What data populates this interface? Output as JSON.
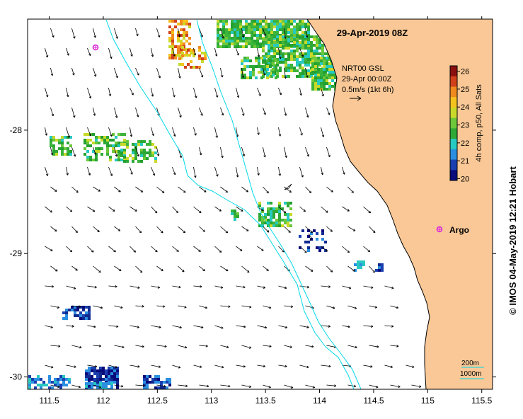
{
  "title": "29-Apr-2019 08Z",
  "info": {
    "line1": "NRT00 GSL",
    "line2": "29-Apr 00:00Z",
    "line3": "0.5m/s (1kt 6h)"
  },
  "colorbar": {
    "label": "4h comp, p50, All Sats",
    "ticks": [
      "26",
      "25",
      "24",
      "23",
      "22",
      "21",
      "20"
    ],
    "min": 19.9,
    "max": 26.3,
    "colors": [
      "#0a0a7a",
      "#1a3fb0",
      "#2a8fe0",
      "#27c9c0",
      "#2ea836",
      "#6cc83a",
      "#c9d92a",
      "#f4c31e",
      "#f08a1e",
      "#d0401a",
      "#8a1010"
    ]
  },
  "argo": {
    "label": "Argo",
    "color": "#e020e0"
  },
  "isobaths": {
    "label_200": "200m",
    "label_1000": "1000m",
    "color": "#00d8e8"
  },
  "land_color": "#f9c896",
  "axes": {
    "x_ticks": [
      "111.5",
      "112",
      "112.5",
      "113",
      "113.5",
      "114",
      "114.5",
      "115",
      "115.5"
    ],
    "y_ticks": [
      "-28",
      "-29",
      "-30"
    ],
    "lon_range": [
      111.3,
      115.6
    ],
    "lat_range": [
      -30.1,
      -27.1
    ]
  },
  "credit": "© IMOS 04-May-2019 12:21 Hobart"
}
